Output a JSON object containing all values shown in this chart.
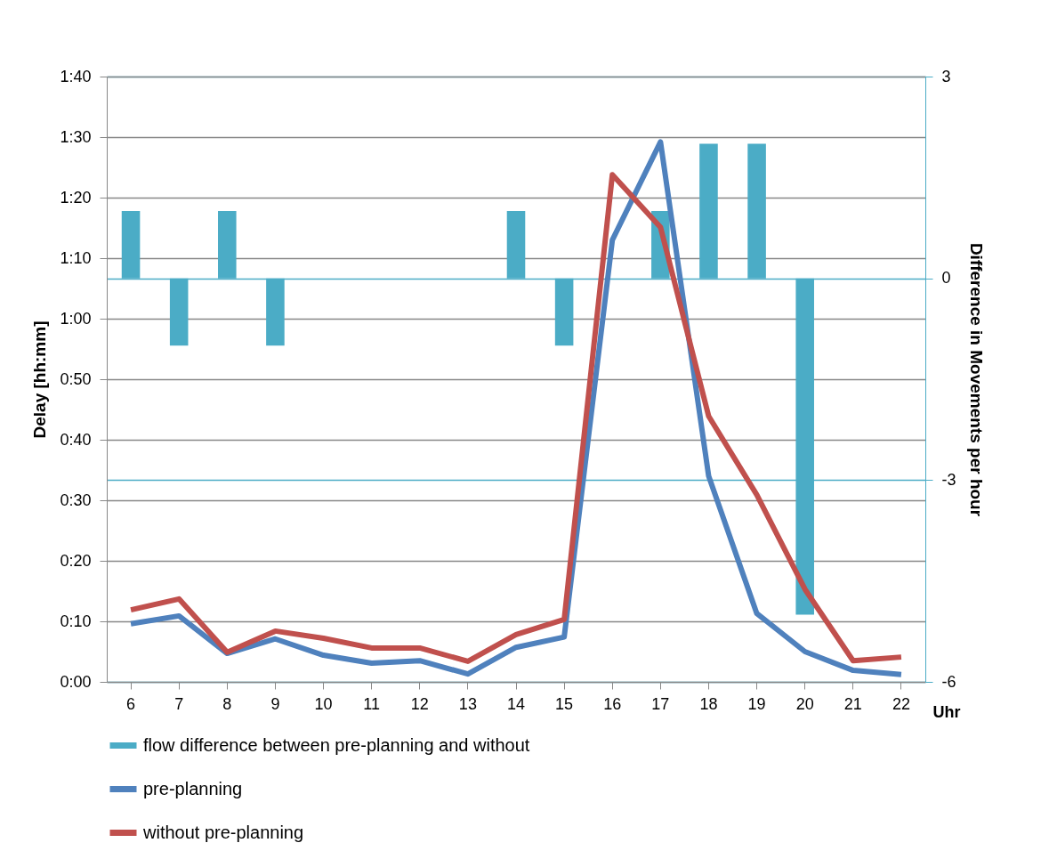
{
  "chart_data": {
    "type": "line",
    "categories": [
      "6",
      "7",
      "8",
      "9",
      "10",
      "11",
      "12",
      "13",
      "14",
      "15",
      "16",
      "17",
      "18",
      "19",
      "20",
      "21",
      "22"
    ],
    "xlabel": "Uhr",
    "ylabel": "Delay [hh:mm]",
    "y2label": "Difference in Movements per hour",
    "series": [
      {
        "name": "flow difference between pre-planning and without",
        "type": "bar",
        "axis": "y2",
        "color": "#4bacc6",
        "values": [
          1,
          -1,
          1,
          -1,
          0,
          0,
          0,
          0,
          1,
          -1,
          0,
          1,
          2,
          2,
          -5,
          0,
          0
        ]
      },
      {
        "name": "pre-planning",
        "color": "#4f81bd",
        "values": [
          9.6,
          10.9,
          4.7,
          7.1,
          4.4,
          3.1,
          3.5,
          1.3,
          5.7,
          7.4,
          73,
          89.2,
          34,
          11.3,
          5,
          1.9,
          1.2
        ]
      },
      {
        "name": "without pre-planning",
        "color": "#c0504d",
        "values": [
          11.9,
          13.7,
          4.9,
          8.4,
          7.2,
          5.6,
          5.6,
          3.4,
          7.8,
          10.3,
          83.8,
          75.1,
          43.9,
          30.9,
          15.3,
          3.5,
          4.1
        ]
      }
    ],
    "ylim": [
      0,
      100
    ],
    "yticks": [
      {
        "value": 0,
        "label": "0:00"
      },
      {
        "value": 10,
        "label": "0:10"
      },
      {
        "value": 20,
        "label": "0:20"
      },
      {
        "value": 30,
        "label": "0:30"
      },
      {
        "value": 40,
        "label": "0:40"
      },
      {
        "value": 50,
        "label": "0:50"
      },
      {
        "value": 60,
        "label": "1:00"
      },
      {
        "value": 70,
        "label": "1:10"
      },
      {
        "value": 80,
        "label": "1:20"
      },
      {
        "value": 90,
        "label": "1:30"
      },
      {
        "value": 100,
        "label": "1:40"
      }
    ],
    "y2lim": [
      -6,
      3
    ],
    "y2ticks": [
      -6,
      -3,
      0,
      3
    ],
    "grid": true,
    "legend": "bottom",
    "marker": "none",
    "line_style": "solid"
  }
}
